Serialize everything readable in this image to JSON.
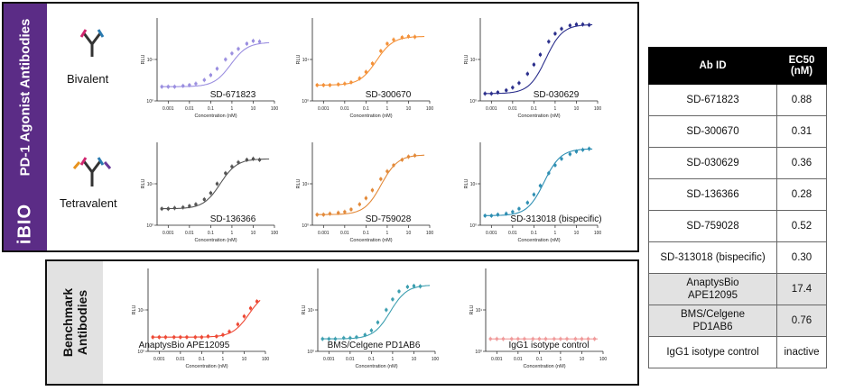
{
  "colors": {
    "brand_purple": "#5b2c86",
    "gray_band": "#e2e2e2"
  },
  "top_panel": {
    "band_title": "PD-1 Agonist Antibodies",
    "logo": "iBIO",
    "formats": [
      {
        "label": "Bivalent",
        "icon": "bivalent-antibody-icon"
      },
      {
        "label": "Tetravalent",
        "icon": "tetravalent-antibody-icon"
      }
    ]
  },
  "bottom_panel": {
    "band_title_line1": "Benchmark",
    "band_title_line2": "Antibodies"
  },
  "table": {
    "headers": [
      "Ab ID",
      "EC50\n(nM)"
    ],
    "header_id": "Ab ID",
    "header_ec50_line1": "EC50",
    "header_ec50_line2": "(nM)",
    "rows": [
      {
        "id": "SD-671823",
        "ec50": "0.88"
      },
      {
        "id": "SD-300670",
        "ec50": "0.31"
      },
      {
        "id": "SD-030629",
        "ec50": "0.36"
      },
      {
        "id": "SD-136366",
        "ec50": "0.28"
      },
      {
        "id": "SD-759028",
        "ec50": "0.52"
      },
      {
        "id": "SD-313018 (bispecific)",
        "ec50": "0.30"
      },
      {
        "id_line1": "AnaptysBio",
        "id_line2": "APE12095",
        "ec50": "17.4"
      },
      {
        "id_line1": "BMS/Celgene",
        "id_line2": "PD1AB6",
        "ec50": "0.76"
      },
      {
        "id": "IgG1 isotype control",
        "ec50": "inactive"
      }
    ]
  },
  "chart_data": [
    {
      "type": "line",
      "title": "SD-671823",
      "color": "#9b8fe0",
      "xlabel": "Concentration (nM)",
      "ylabel": "RLU",
      "xscale": "log",
      "xlim": [
        0.0003,
        100
      ],
      "xticks": [
        "0.001",
        "0.01",
        "0.1",
        "1",
        "10",
        "100"
      ],
      "ylim": [
        1,
        100
      ],
      "yticks": [
        "10⁰",
        "10¹"
      ],
      "ec50": 0.88,
      "y_bottom": 2.2,
      "y_top": 26,
      "x": [
        0.0005,
        0.001,
        0.002,
        0.005,
        0.01,
        0.02,
        0.05,
        0.1,
        0.2,
        0.5,
        1,
        2,
        5,
        10,
        20
      ],
      "points": [
        2.2,
        2.2,
        2.2,
        2.3,
        2.4,
        2.6,
        3.2,
        4.2,
        6,
        10,
        14,
        18,
        24,
        28,
        27
      ]
    },
    {
      "type": "line",
      "title": "SD-300670",
      "color": "#f4923a",
      "xlabel": "Concentration (nM)",
      "ylabel": "RLU",
      "xscale": "log",
      "xlim": [
        0.0003,
        100
      ],
      "xticks": [
        "0.001",
        "0.01",
        "0.1",
        "1",
        "10",
        "100"
      ],
      "ylim": [
        1,
        100
      ],
      "yticks": [
        "10⁰",
        "10¹"
      ],
      "ec50": 0.31,
      "y_bottom": 2.4,
      "y_top": 36,
      "x": [
        0.0005,
        0.001,
        0.002,
        0.005,
        0.01,
        0.02,
        0.05,
        0.1,
        0.2,
        0.5,
        1,
        2,
        5,
        10,
        20
      ],
      "points": [
        2.4,
        2.4,
        2.4,
        2.5,
        2.6,
        2.8,
        3.5,
        5,
        8,
        16,
        24,
        30,
        34,
        36,
        35
      ]
    },
    {
      "type": "line",
      "title": "SD-030629",
      "color": "#2b2f8c",
      "xlabel": "Concentration (nM)",
      "ylabel": "RLU",
      "xscale": "log",
      "xlim": [
        0.0003,
        100
      ],
      "xticks": [
        "0.001",
        "0.01",
        "0.1",
        "1",
        "10",
        "100"
      ],
      "ylim": [
        1,
        100
      ],
      "yticks": [
        "10⁰",
        "10¹"
      ],
      "ec50": 0.36,
      "y_bottom": 1.5,
      "y_top": 70,
      "x": [
        0.0005,
        0.001,
        0.002,
        0.005,
        0.01,
        0.02,
        0.05,
        0.1,
        0.2,
        0.5,
        1,
        2,
        5,
        10,
        20,
        40
      ],
      "points": [
        1.5,
        1.5,
        1.6,
        1.8,
        2.1,
        2.7,
        4.5,
        7.5,
        13,
        27,
        42,
        55,
        66,
        70,
        70,
        68
      ]
    },
    {
      "type": "line",
      "title": "SD-136366",
      "color": "#555555",
      "xlabel": "Concentration (nM)",
      "ylabel": "RLU",
      "xscale": "log",
      "xlim": [
        0.0003,
        100
      ],
      "xticks": [
        "0.001",
        "0.01",
        "0.1",
        "1",
        "10",
        "100"
      ],
      "ylim": [
        1,
        100
      ],
      "yticks": [
        "10⁰",
        "10¹"
      ],
      "ec50": 0.28,
      "y_bottom": 2.5,
      "y_top": 40,
      "x": [
        0.0005,
        0.001,
        0.002,
        0.005,
        0.01,
        0.02,
        0.05,
        0.1,
        0.2,
        0.5,
        1,
        2,
        5,
        10,
        20
      ],
      "points": [
        2.5,
        2.5,
        2.6,
        2.7,
        2.9,
        3.2,
        4.2,
        6,
        10,
        18,
        26,
        33,
        38,
        40,
        38
      ]
    },
    {
      "type": "line",
      "title": "SD-759028",
      "color": "#e38a3a",
      "xlabel": "Concentration (nM)",
      "ylabel": "RLU",
      "xscale": "log",
      "xlim": [
        0.0003,
        100
      ],
      "xticks": [
        "0.001",
        "0.01",
        "0.1",
        "1",
        "10",
        "100"
      ],
      "ylim": [
        1,
        100
      ],
      "yticks": [
        "10⁰",
        "10¹"
      ],
      "ec50": 0.52,
      "y_bottom": 1.8,
      "y_top": 50,
      "x": [
        0.0005,
        0.001,
        0.002,
        0.005,
        0.01,
        0.02,
        0.05,
        0.1,
        0.2,
        0.5,
        1,
        2,
        5,
        10,
        20
      ],
      "points": [
        1.8,
        1.8,
        1.9,
        2,
        2.1,
        2.4,
        3.2,
        4.5,
        7,
        13,
        20,
        28,
        38,
        45,
        48
      ]
    },
    {
      "type": "line",
      "title": "SD-313018 (bispecific)",
      "color": "#2f8fb3",
      "xlabel": "Concentration (nM)",
      "ylabel": "RLU",
      "xscale": "log",
      "xlim": [
        0.0003,
        100
      ],
      "xticks": [
        "0.001",
        "0.01",
        "0.1",
        "1",
        "10",
        "100"
      ],
      "ylim": [
        1,
        100
      ],
      "yticks": [
        "10⁰",
        "10¹"
      ],
      "ec50": 0.3,
      "y_bottom": 1.7,
      "y_top": 70,
      "x": [
        0.0005,
        0.001,
        0.002,
        0.005,
        0.01,
        0.02,
        0.05,
        0.1,
        0.2,
        0.5,
        1,
        2,
        5,
        10,
        20,
        40
      ],
      "points": [
        1.7,
        1.7,
        1.8,
        1.9,
        2.1,
        2.5,
        3.5,
        5.5,
        9,
        18,
        28,
        40,
        52,
        60,
        66,
        70
      ]
    },
    {
      "type": "line",
      "title": "AnaptysBio APE12095",
      "color": "#ee4a36",
      "xlabel": "Concentration (nM)",
      "ylabel": "RLU",
      "xscale": "log",
      "xlim": [
        0.0003,
        100
      ],
      "xticks": [
        "0.001",
        "0.01",
        "0.1",
        "1",
        "10",
        "100"
      ],
      "ylim": [
        1,
        100
      ],
      "yticks": [
        "10⁰",
        "10¹"
      ],
      "ec50": 17.4,
      "y_bottom": 2.2,
      "y_top": 30,
      "x": [
        0.0005,
        0.001,
        0.002,
        0.005,
        0.01,
        0.02,
        0.05,
        0.1,
        0.2,
        0.5,
        1,
        2,
        5,
        10,
        20,
        40
      ],
      "points": [
        2.2,
        2.2,
        2.2,
        2.2,
        2.2,
        2.2,
        2.2,
        2.2,
        2.3,
        2.3,
        2.5,
        3,
        4.5,
        7,
        11,
        16
      ]
    },
    {
      "type": "line",
      "title": "BMS/Celgene PD1AB6",
      "color": "#3d9fb0",
      "xlabel": "Concentration (nM)",
      "ylabel": "RLU",
      "xscale": "log",
      "xlim": [
        0.0003,
        100
      ],
      "xticks": [
        "0.001",
        "0.01",
        "0.1",
        "1",
        "10",
        "100"
      ],
      "ylim": [
        1,
        100
      ],
      "yticks": [
        "10⁰",
        "10¹"
      ],
      "ec50": 0.76,
      "y_bottom": 2.0,
      "y_top": 40,
      "x": [
        0.0005,
        0.001,
        0.002,
        0.005,
        0.01,
        0.02,
        0.05,
        0.1,
        0.2,
        0.5,
        1,
        2,
        5,
        10,
        20
      ],
      "points": [
        2,
        2,
        2,
        2.1,
        2.1,
        2.2,
        2.5,
        3.2,
        5,
        10,
        18,
        28,
        36,
        38,
        37
      ]
    },
    {
      "type": "line",
      "title": "IgG1 isotype control",
      "color": "#f09a9a",
      "xlabel": "Concentration (nM)",
      "ylabel": "RLU",
      "xscale": "log",
      "xlim": [
        0.0003,
        100
      ],
      "xticks": [
        "0.001",
        "0.01",
        "0.1",
        "1",
        "10",
        "100"
      ],
      "ylim": [
        1,
        100
      ],
      "yticks": [
        "10⁰",
        "10¹"
      ],
      "ec50": null,
      "y_bottom": 2.0,
      "y_top": 2.0,
      "x": [
        0.0005,
        0.001,
        0.002,
        0.005,
        0.01,
        0.02,
        0.05,
        0.1,
        0.2,
        0.5,
        1,
        2,
        5,
        10,
        20,
        40
      ],
      "points": [
        2,
        2,
        2,
        2,
        2,
        2,
        2,
        2,
        2,
        2,
        2,
        2,
        2,
        2,
        2,
        2
      ]
    }
  ]
}
